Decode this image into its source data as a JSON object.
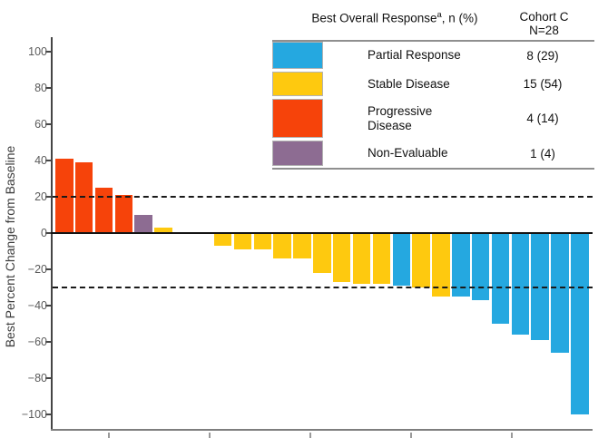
{
  "figure": {
    "kind": "waterfall-plot"
  },
  "legend": {
    "header": {
      "title": "Best Overall Response",
      "superscript": "a",
      "suffix": ", n (%)",
      "cohort_line1": "Cohort C",
      "cohort_line2": "N=28"
    },
    "rows": [
      {
        "label": "Partial Response",
        "value": "8 (29)",
        "color": "#25A8E0"
      },
      {
        "label": "Stable Disease",
        "value": "15 (54)",
        "color": "#FEC90F"
      },
      {
        "label": "Progressive Disease",
        "value": "4 (14)",
        "color": "#F6430A"
      },
      {
        "label": "Non-Evaluable",
        "value": "1 (4)",
        "color": "#8D6C92"
      }
    ]
  },
  "chart_data": {
    "type": "bar",
    "subtype": "waterfall",
    "title": "",
    "xlabel": "",
    "ylabel": "Best Percent Change from Baseline",
    "ylim": [
      -108,
      108
    ],
    "ytick_values": [
      100,
      80,
      60,
      40,
      20,
      0,
      -20,
      -40,
      -60,
      -80,
      -100
    ],
    "ytick_labels": [
      "100",
      "80",
      "60",
      "40",
      "20",
      "0",
      "−20",
      "−40",
      "−60",
      "−80",
      "−100"
    ],
    "reference_lines": [
      20,
      -30
    ],
    "grid": false,
    "legend_position": "top-right",
    "colors": {
      "Partial Response": "#25A8E0",
      "Stable Disease": "#FEC90F",
      "Progressive Disease": "#F6430A",
      "Non-Evaluable": "#8D6C92"
    },
    "bars": [
      {
        "value": 41,
        "response": "Progressive Disease"
      },
      {
        "value": 39,
        "response": "Progressive Disease"
      },
      {
        "value": 25,
        "response": "Progressive Disease"
      },
      {
        "value": 21,
        "response": "Progressive Disease"
      },
      {
        "value": 10,
        "response": "Non-Evaluable"
      },
      {
        "value": 3,
        "response": "Stable Disease"
      },
      {
        "value": 0,
        "response": "Stable Disease"
      },
      {
        "value": 0,
        "response": "Stable Disease"
      },
      {
        "value": -7,
        "response": "Stable Disease"
      },
      {
        "value": -9,
        "response": "Stable Disease"
      },
      {
        "value": -9,
        "response": "Stable Disease"
      },
      {
        "value": -14,
        "response": "Stable Disease"
      },
      {
        "value": -14,
        "response": "Stable Disease"
      },
      {
        "value": -22,
        "response": "Stable Disease"
      },
      {
        "value": -27,
        "response": "Stable Disease"
      },
      {
        "value": -28,
        "response": "Stable Disease"
      },
      {
        "value": -28,
        "response": "Stable Disease"
      },
      {
        "value": -29,
        "response": "Partial Response"
      },
      {
        "value": -30,
        "response": "Stable Disease"
      },
      {
        "value": -35,
        "response": "Stable Disease"
      },
      {
        "value": -35,
        "response": "Partial Response"
      },
      {
        "value": -37,
        "response": "Partial Response"
      },
      {
        "value": -50,
        "response": "Partial Response"
      },
      {
        "value": -56,
        "response": "Partial Response"
      },
      {
        "value": -59,
        "response": "Partial Response"
      },
      {
        "value": -66,
        "response": "Partial Response"
      },
      {
        "value": -100,
        "response": "Partial Response"
      }
    ]
  }
}
